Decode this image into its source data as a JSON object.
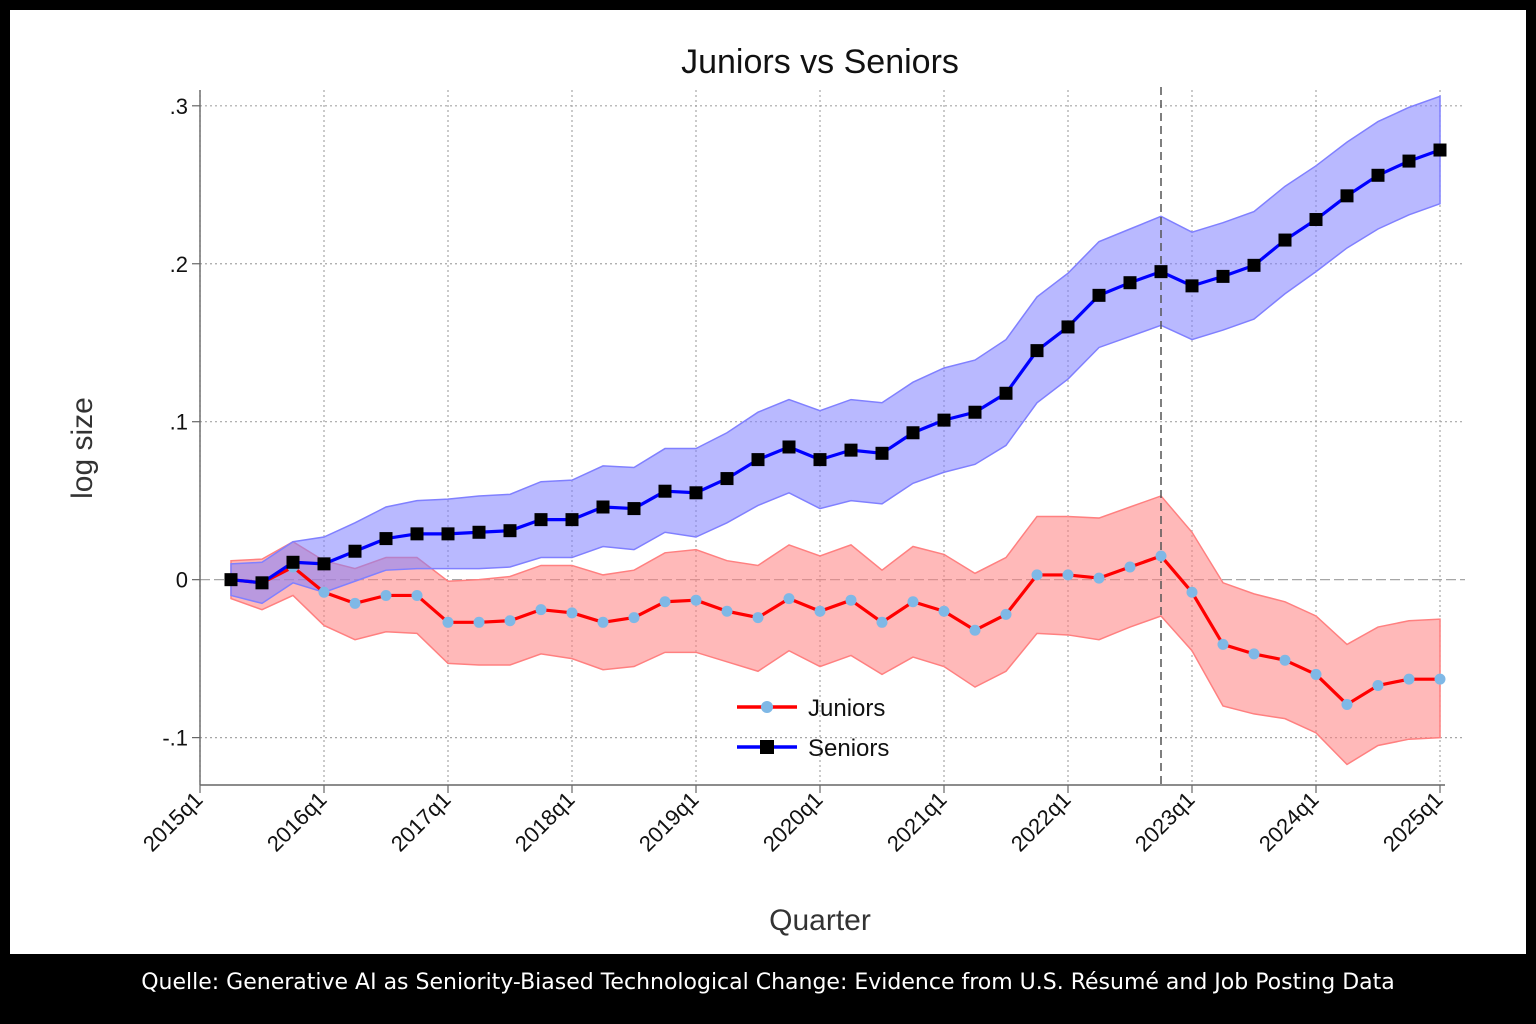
{
  "caption": "Quelle: Generative AI as Seniority-Biased Technological Change: Evidence from U.S. Résumé and Job Posting Data",
  "chart_data": {
    "type": "line",
    "title": "Juniors vs Seniors",
    "xlabel": "Quarter",
    "ylabel": "log size",
    "xlim": [
      "2015q1",
      "2025q1"
    ],
    "ylim": [
      -0.13,
      0.31
    ],
    "grid": true,
    "legend_position": "bottom-center",
    "x_ticks": [
      "2015q1",
      "2016q1",
      "2017q1",
      "2018q1",
      "2019q1",
      "2020q1",
      "2021q1",
      "2022q1",
      "2023q1",
      "2024q1",
      "2025q1"
    ],
    "y_ticks": [
      {
        "value": -0.1,
        "label": "-.1"
      },
      {
        "value": 0,
        "label": "0"
      },
      {
        "value": 0.1,
        "label": ".1"
      },
      {
        "value": 0.2,
        "label": ".2"
      },
      {
        "value": 0.3,
        "label": ".3"
      }
    ],
    "reference_line": {
      "x": "2022q4",
      "style": "dashed"
    },
    "x": [
      "2015q2",
      "2015q3",
      "2015q4",
      "2016q1",
      "2016q2",
      "2016q3",
      "2016q4",
      "2017q1",
      "2017q2",
      "2017q3",
      "2017q4",
      "2018q1",
      "2018q2",
      "2018q3",
      "2018q4",
      "2019q1",
      "2019q2",
      "2019q3",
      "2019q4",
      "2020q1",
      "2020q2",
      "2020q3",
      "2020q4",
      "2021q1",
      "2021q2",
      "2021q3",
      "2021q4",
      "2022q1",
      "2022q2",
      "2022q3",
      "2022q4",
      "2023q1",
      "2023q2",
      "2023q3",
      "2023q4",
      "2024q1",
      "2024q2",
      "2024q3",
      "2024q4",
      "2025q1"
    ],
    "series": [
      {
        "name": "Juniors",
        "color": "#ff0000",
        "marker": "circle",
        "marker_color": "#7fb8e6",
        "band_color": "#ff8080",
        "values": [
          0.0,
          -0.002,
          0.008,
          -0.008,
          -0.015,
          -0.01,
          -0.01,
          -0.027,
          -0.027,
          -0.026,
          -0.019,
          -0.021,
          -0.027,
          -0.024,
          -0.014,
          -0.013,
          -0.02,
          -0.024,
          -0.012,
          -0.02,
          -0.013,
          -0.027,
          -0.014,
          -0.02,
          -0.032,
          -0.022,
          0.003,
          0.003,
          0.001,
          0.008,
          0.015,
          -0.008,
          -0.041,
          -0.047,
          -0.051,
          -0.06,
          -0.079,
          -0.067,
          -0.063,
          -0.063
        ],
        "lower": [
          -0.012,
          -0.019,
          -0.01,
          -0.029,
          -0.038,
          -0.033,
          -0.034,
          -0.053,
          -0.054,
          -0.054,
          -0.047,
          -0.05,
          -0.057,
          -0.055,
          -0.046,
          -0.046,
          -0.052,
          -0.058,
          -0.045,
          -0.055,
          -0.048,
          -0.06,
          -0.049,
          -0.055,
          -0.068,
          -0.058,
          -0.034,
          -0.035,
          -0.038,
          -0.03,
          -0.023,
          -0.045,
          -0.08,
          -0.085,
          -0.088,
          -0.097,
          -0.117,
          -0.105,
          -0.101,
          -0.1
        ],
        "upper": [
          0.012,
          0.013,
          0.024,
          0.012,
          0.007,
          0.014,
          0.014,
          -0.001,
          0.0,
          0.002,
          0.009,
          0.009,
          0.003,
          0.006,
          0.017,
          0.019,
          0.012,
          0.009,
          0.022,
          0.015,
          0.022,
          0.006,
          0.021,
          0.016,
          0.004,
          0.014,
          0.04,
          0.04,
          0.039,
          0.046,
          0.053,
          0.03,
          -0.002,
          -0.009,
          -0.014,
          -0.023,
          -0.041,
          -0.03,
          -0.026,
          -0.025
        ]
      },
      {
        "name": "Seniors",
        "color": "#0000ff",
        "marker": "square",
        "marker_color": "#000000",
        "band_color": "#8080ff",
        "values": [
          0.0,
          -0.002,
          0.011,
          0.01,
          0.018,
          0.026,
          0.029,
          0.029,
          0.03,
          0.031,
          0.038,
          0.038,
          0.046,
          0.045,
          0.056,
          0.055,
          0.064,
          0.076,
          0.084,
          0.076,
          0.082,
          0.08,
          0.093,
          0.101,
          0.106,
          0.118,
          0.145,
          0.16,
          0.18,
          0.188,
          0.195,
          0.186,
          0.192,
          0.199,
          0.215,
          0.228,
          0.243,
          0.256,
          0.265,
          0.272
        ],
        "lower": [
          -0.01,
          -0.015,
          -0.002,
          -0.008,
          -0.001,
          0.006,
          0.007,
          0.007,
          0.007,
          0.008,
          0.014,
          0.014,
          0.021,
          0.019,
          0.03,
          0.027,
          0.036,
          0.047,
          0.055,
          0.045,
          0.05,
          0.048,
          0.061,
          0.068,
          0.073,
          0.085,
          0.112,
          0.127,
          0.147,
          0.154,
          0.161,
          0.152,
          0.158,
          0.165,
          0.181,
          0.195,
          0.21,
          0.222,
          0.231,
          0.238
        ],
        "upper": [
          0.01,
          0.011,
          0.024,
          0.027,
          0.036,
          0.046,
          0.05,
          0.051,
          0.053,
          0.054,
          0.062,
          0.063,
          0.072,
          0.071,
          0.083,
          0.083,
          0.093,
          0.106,
          0.114,
          0.107,
          0.114,
          0.112,
          0.125,
          0.134,
          0.139,
          0.152,
          0.179,
          0.194,
          0.214,
          0.222,
          0.23,
          0.22,
          0.226,
          0.233,
          0.249,
          0.262,
          0.277,
          0.29,
          0.299,
          0.306
        ]
      }
    ]
  }
}
